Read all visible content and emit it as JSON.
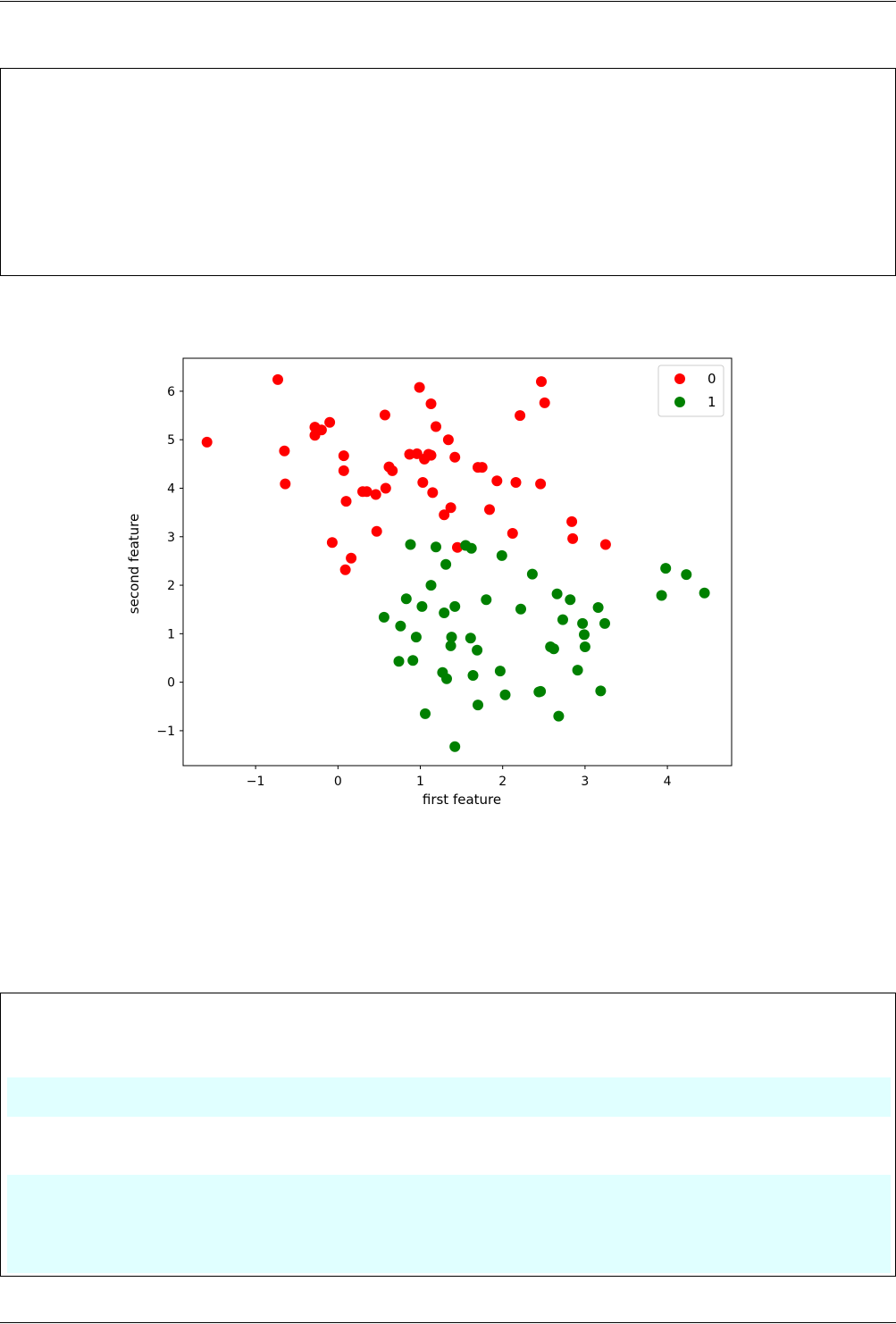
{
  "chart_data": {
    "type": "scatter",
    "xlabel": "first feature",
    "ylabel": "second feature",
    "xlim": [
      -1.88,
      4.78
    ],
    "ylim": [
      -1.72,
      6.68
    ],
    "xticks": [
      -1,
      0,
      1,
      2,
      3,
      4
    ],
    "yticks": [
      -1,
      0,
      1,
      2,
      3,
      4,
      5,
      6
    ],
    "tick_labels_x": [
      "−1",
      "0",
      "1",
      "2",
      "3",
      "4"
    ],
    "tick_labels_y": [
      "−1",
      "0",
      "1",
      "2",
      "3",
      "4",
      "5",
      "6"
    ],
    "grid": false,
    "legend": "top-right",
    "series": [
      {
        "name": "0",
        "color": "#ff0000",
        "points": [
          [
            -1.59,
            4.95
          ],
          [
            -0.73,
            6.24
          ],
          [
            -0.65,
            4.77
          ],
          [
            -0.64,
            4.09
          ],
          [
            -0.28,
            5.26
          ],
          [
            -0.28,
            5.09
          ],
          [
            -0.2,
            5.2
          ],
          [
            -0.1,
            5.36
          ],
          [
            -0.07,
            2.88
          ],
          [
            0.07,
            4.67
          ],
          [
            0.07,
            4.36
          ],
          [
            0.09,
            2.32
          ],
          [
            0.1,
            3.73
          ],
          [
            0.16,
            2.56
          ],
          [
            0.3,
            3.93
          ],
          [
            0.35,
            3.93
          ],
          [
            0.46,
            3.87
          ],
          [
            0.47,
            3.11
          ],
          [
            0.57,
            5.51
          ],
          [
            0.58,
            4.0
          ],
          [
            0.62,
            4.44
          ],
          [
            0.66,
            4.36
          ],
          [
            0.87,
            4.7
          ],
          [
            0.96,
            4.71
          ],
          [
            0.99,
            6.08
          ],
          [
            1.03,
            4.12
          ],
          [
            1.05,
            4.6
          ],
          [
            1.1,
            4.7
          ],
          [
            1.13,
            4.68
          ],
          [
            1.13,
            5.74
          ],
          [
            1.15,
            3.91
          ],
          [
            1.19,
            5.27
          ],
          [
            1.29,
            3.45
          ],
          [
            1.34,
            5.0
          ],
          [
            1.37,
            3.6
          ],
          [
            1.42,
            4.64
          ],
          [
            1.45,
            2.78
          ],
          [
            1.7,
            4.43
          ],
          [
            1.75,
            4.43
          ],
          [
            1.84,
            3.56
          ],
          [
            1.93,
            4.15
          ],
          [
            2.12,
            3.07
          ],
          [
            2.16,
            4.12
          ],
          [
            2.21,
            5.5
          ],
          [
            2.46,
            4.09
          ],
          [
            2.47,
            6.2
          ],
          [
            2.51,
            5.76
          ],
          [
            2.84,
            3.31
          ],
          [
            2.85,
            2.96
          ],
          [
            3.25,
            2.84
          ]
        ]
      },
      {
        "name": "1",
        "color": "#008000",
        "points": [
          [
            0.56,
            1.34
          ],
          [
            0.74,
            0.43
          ],
          [
            0.76,
            1.16
          ],
          [
            0.83,
            1.72
          ],
          [
            0.88,
            2.84
          ],
          [
            0.91,
            0.45
          ],
          [
            0.95,
            0.93
          ],
          [
            1.02,
            1.56
          ],
          [
            1.06,
            -0.65
          ],
          [
            1.13,
            2.0
          ],
          [
            1.19,
            2.79
          ],
          [
            1.27,
            0.2
          ],
          [
            1.29,
            1.43
          ],
          [
            1.31,
            2.43
          ],
          [
            1.32,
            0.07
          ],
          [
            1.37,
            0.75
          ],
          [
            1.38,
            0.93
          ],
          [
            1.42,
            1.56
          ],
          [
            1.42,
            -1.33
          ],
          [
            1.55,
            2.82
          ],
          [
            1.61,
            0.91
          ],
          [
            1.62,
            2.76
          ],
          [
            1.64,
            0.14
          ],
          [
            1.69,
            0.66
          ],
          [
            1.7,
            -0.47
          ],
          [
            1.8,
            1.7
          ],
          [
            1.97,
            0.23
          ],
          [
            1.99,
            2.61
          ],
          [
            2.03,
            -0.26
          ],
          [
            2.22,
            1.51
          ],
          [
            2.36,
            2.23
          ],
          [
            2.44,
            -0.2
          ],
          [
            2.46,
            -0.19
          ],
          [
            2.58,
            0.73
          ],
          [
            2.62,
            0.69
          ],
          [
            2.66,
            1.82
          ],
          [
            2.68,
            -0.7
          ],
          [
            2.73,
            1.29
          ],
          [
            2.82,
            1.7
          ],
          [
            2.91,
            0.25
          ],
          [
            2.97,
            1.21
          ],
          [
            2.99,
            0.98
          ],
          [
            3.0,
            0.73
          ],
          [
            3.16,
            1.54
          ],
          [
            3.19,
            -0.18
          ],
          [
            3.24,
            1.21
          ],
          [
            3.93,
            1.79
          ],
          [
            3.98,
            2.35
          ],
          [
            4.23,
            2.22
          ],
          [
            4.45,
            1.84
          ]
        ]
      }
    ]
  }
}
